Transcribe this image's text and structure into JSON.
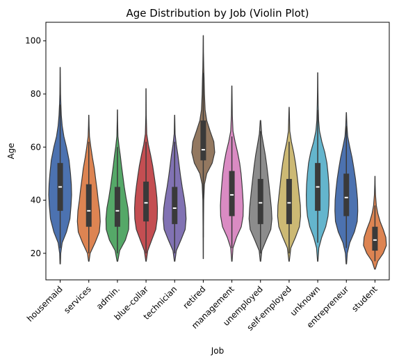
{
  "chart_data": {
    "type": "violin",
    "title": "Age Distribution by Job (Violin Plot)",
    "xlabel": "Job",
    "ylabel": "Age",
    "ylim": [
      10,
      107
    ],
    "yticks": [
      20,
      40,
      60,
      80,
      100
    ],
    "grid": false,
    "legend": "none",
    "series": [
      {
        "category": "housemaid",
        "color": "#4c72b0",
        "min": 16,
        "max": 90,
        "q1": 36,
        "median": 45,
        "q3": 54,
        "whisker_low": 22,
        "whisker_high": 76,
        "profile": [
          [
            16,
            0.02
          ],
          [
            20,
            0.05
          ],
          [
            24,
            0.18
          ],
          [
            28,
            0.55
          ],
          [
            33,
            0.85
          ],
          [
            38,
            0.95
          ],
          [
            42,
            1.0
          ],
          [
            46,
            0.97
          ],
          [
            50,
            0.9
          ],
          [
            55,
            0.78
          ],
          [
            60,
            0.55
          ],
          [
            64,
            0.32
          ],
          [
            68,
            0.18
          ],
          [
            72,
            0.1
          ],
          [
            76,
            0.06
          ],
          [
            80,
            0.03
          ],
          [
            85,
            0.02
          ],
          [
            90,
            0.01
          ]
        ]
      },
      {
        "category": "services",
        "color": "#dd8452",
        "min": 17,
        "max": 72,
        "q1": 30,
        "median": 36,
        "q3": 46,
        "whisker_low": 20,
        "whisker_high": 62,
        "profile": [
          [
            17,
            0.02
          ],
          [
            20,
            0.12
          ],
          [
            24,
            0.55
          ],
          [
            28,
            0.92
          ],
          [
            32,
            1.0
          ],
          [
            36,
            0.95
          ],
          [
            40,
            0.82
          ],
          [
            44,
            0.72
          ],
          [
            48,
            0.6
          ],
          [
            52,
            0.48
          ],
          [
            56,
            0.32
          ],
          [
            60,
            0.18
          ],
          [
            64,
            0.06
          ],
          [
            68,
            0.03
          ],
          [
            72,
            0.01
          ]
        ]
      },
      {
        "category": "admin.",
        "color": "#55a868",
        "min": 17,
        "max": 74,
        "q1": 30,
        "median": 36,
        "q3": 45,
        "whisker_low": 20,
        "whisker_high": 60,
        "profile": [
          [
            17,
            0.03
          ],
          [
            21,
            0.2
          ],
          [
            25,
            0.7
          ],
          [
            29,
            0.98
          ],
          [
            33,
            1.0
          ],
          [
            37,
            0.92
          ],
          [
            41,
            0.75
          ],
          [
            45,
            0.6
          ],
          [
            49,
            0.48
          ],
          [
            53,
            0.36
          ],
          [
            57,
            0.25
          ],
          [
            60,
            0.15
          ],
          [
            64,
            0.05
          ],
          [
            70,
            0.02
          ],
          [
            74,
            0.01
          ]
        ]
      },
      {
        "category": "blue-collar",
        "color": "#c44e52",
        "min": 17,
        "max": 82,
        "q1": 32,
        "median": 39,
        "q3": 47,
        "whisker_low": 20,
        "whisker_high": 62,
        "profile": [
          [
            17,
            0.02
          ],
          [
            21,
            0.15
          ],
          [
            25,
            0.5
          ],
          [
            29,
            0.85
          ],
          [
            33,
            0.98
          ],
          [
            37,
            1.0
          ],
          [
            41,
            0.95
          ],
          [
            45,
            0.85
          ],
          [
            49,
            0.72
          ],
          [
            53,
            0.58
          ],
          [
            57,
            0.4
          ],
          [
            61,
            0.2
          ],
          [
            65,
            0.06
          ],
          [
            72,
            0.02
          ],
          [
            82,
            0.01
          ]
        ]
      },
      {
        "category": "technician",
        "color": "#8172b3",
        "min": 17,
        "max": 72,
        "q1": 31,
        "median": 37,
        "q3": 45,
        "whisker_low": 20,
        "whisker_high": 62,
        "profile": [
          [
            17,
            0.02
          ],
          [
            21,
            0.15
          ],
          [
            25,
            0.55
          ],
          [
            29,
            0.92
          ],
          [
            33,
            1.0
          ],
          [
            37,
            0.95
          ],
          [
            41,
            0.82
          ],
          [
            45,
            0.66
          ],
          [
            49,
            0.52
          ],
          [
            53,
            0.4
          ],
          [
            57,
            0.28
          ],
          [
            61,
            0.14
          ],
          [
            65,
            0.04
          ],
          [
            72,
            0.01
          ]
        ]
      },
      {
        "category": "retired",
        "color": "#937860",
        "min": 18,
        "max": 102,
        "q1": 55,
        "median": 59,
        "q3": 70,
        "whisker_low": 26,
        "whisker_high": 88,
        "profile": [
          [
            18,
            0.01
          ],
          [
            30,
            0.02
          ],
          [
            40,
            0.04
          ],
          [
            46,
            0.1
          ],
          [
            50,
            0.3
          ],
          [
            54,
            0.78
          ],
          [
            58,
            1.0
          ],
          [
            62,
            0.92
          ],
          [
            66,
            0.6
          ],
          [
            70,
            0.3
          ],
          [
            74,
            0.16
          ],
          [
            80,
            0.1
          ],
          [
            86,
            0.07
          ],
          [
            90,
            0.04
          ],
          [
            96,
            0.02
          ],
          [
            102,
            0.01
          ]
        ]
      },
      {
        "category": "management",
        "color": "#da8bc3",
        "min": 17,
        "max": 83,
        "q1": 34,
        "median": 42,
        "q3": 51,
        "whisker_low": 22,
        "whisker_high": 64,
        "profile": [
          [
            17,
            0.02
          ],
          [
            22,
            0.1
          ],
          [
            26,
            0.4
          ],
          [
            30,
            0.82
          ],
          [
            34,
            0.98
          ],
          [
            38,
            1.0
          ],
          [
            42,
            0.95
          ],
          [
            46,
            0.88
          ],
          [
            50,
            0.8
          ],
          [
            54,
            0.68
          ],
          [
            58,
            0.5
          ],
          [
            62,
            0.28
          ],
          [
            66,
            0.1
          ],
          [
            72,
            0.04
          ],
          [
            83,
            0.01
          ]
        ]
      },
      {
        "category": "unemployed",
        "color": "#8c8c8c",
        "min": 17,
        "max": 70,
        "q1": 31,
        "median": 39,
        "q3": 48,
        "whisker_low": 20,
        "whisker_high": 66,
        "profile": [
          [
            17,
            0.02
          ],
          [
            21,
            0.12
          ],
          [
            25,
            0.5
          ],
          [
            29,
            0.9
          ],
          [
            33,
            1.0
          ],
          [
            37,
            0.95
          ],
          [
            41,
            0.86
          ],
          [
            45,
            0.76
          ],
          [
            49,
            0.66
          ],
          [
            53,
            0.55
          ],
          [
            57,
            0.42
          ],
          [
            61,
            0.26
          ],
          [
            65,
            0.1
          ],
          [
            70,
            0.02
          ]
        ]
      },
      {
        "category": "self-employed",
        "color": "#ccb974",
        "min": 17,
        "max": 75,
        "q1": 31,
        "median": 39,
        "q3": 48,
        "whisker_low": 20,
        "whisker_high": 62,
        "profile": [
          [
            17,
            0.02
          ],
          [
            22,
            0.15
          ],
          [
            26,
            0.55
          ],
          [
            30,
            0.9
          ],
          [
            34,
            1.0
          ],
          [
            38,
            0.98
          ],
          [
            42,
            0.88
          ],
          [
            46,
            0.78
          ],
          [
            50,
            0.68
          ],
          [
            54,
            0.56
          ],
          [
            58,
            0.4
          ],
          [
            62,
            0.2
          ],
          [
            66,
            0.06
          ],
          [
            75,
            0.01
          ]
        ]
      },
      {
        "category": "unknown",
        "color": "#64b5cd",
        "min": 17,
        "max": 88,
        "q1": 36,
        "median": 45,
        "q3": 54,
        "whisker_low": 24,
        "whisker_high": 74,
        "profile": [
          [
            17,
            0.02
          ],
          [
            22,
            0.1
          ],
          [
            26,
            0.35
          ],
          [
            30,
            0.7
          ],
          [
            34,
            0.9
          ],
          [
            38,
            0.98
          ],
          [
            42,
            1.0
          ],
          [
            46,
            0.97
          ],
          [
            50,
            0.9
          ],
          [
            54,
            0.8
          ],
          [
            58,
            0.62
          ],
          [
            62,
            0.36
          ],
          [
            66,
            0.16
          ],
          [
            70,
            0.08
          ],
          [
            76,
            0.04
          ],
          [
            82,
            0.02
          ],
          [
            88,
            0.01
          ]
        ]
      },
      {
        "category": "entrepreneur",
        "color": "#4c72b0",
        "min": 16,
        "max": 73,
        "q1": 34,
        "median": 41,
        "q3": 50,
        "whisker_low": 22,
        "whisker_high": 68,
        "profile": [
          [
            16,
            0.02
          ],
          [
            20,
            0.08
          ],
          [
            24,
            0.3
          ],
          [
            28,
            0.7
          ],
          [
            32,
            0.95
          ],
          [
            36,
            1.0
          ],
          [
            40,
            0.98
          ],
          [
            44,
            0.9
          ],
          [
            48,
            0.8
          ],
          [
            52,
            0.66
          ],
          [
            56,
            0.5
          ],
          [
            60,
            0.3
          ],
          [
            64,
            0.12
          ],
          [
            68,
            0.05
          ],
          [
            73,
            0.01
          ]
        ]
      },
      {
        "category": "student",
        "color": "#dd8452",
        "min": 14,
        "max": 49,
        "q1": 21,
        "median": 25,
        "q3": 30,
        "whisker_low": 17,
        "whisker_high": 38,
        "profile": [
          [
            14,
            0.03
          ],
          [
            17,
            0.25
          ],
          [
            20,
            0.72
          ],
          [
            23,
            1.0
          ],
          [
            26,
            0.95
          ],
          [
            29,
            0.72
          ],
          [
            32,
            0.45
          ],
          [
            35,
            0.25
          ],
          [
            38,
            0.12
          ],
          [
            42,
            0.05
          ],
          [
            46,
            0.02
          ],
          [
            49,
            0.01
          ]
        ]
      }
    ]
  }
}
